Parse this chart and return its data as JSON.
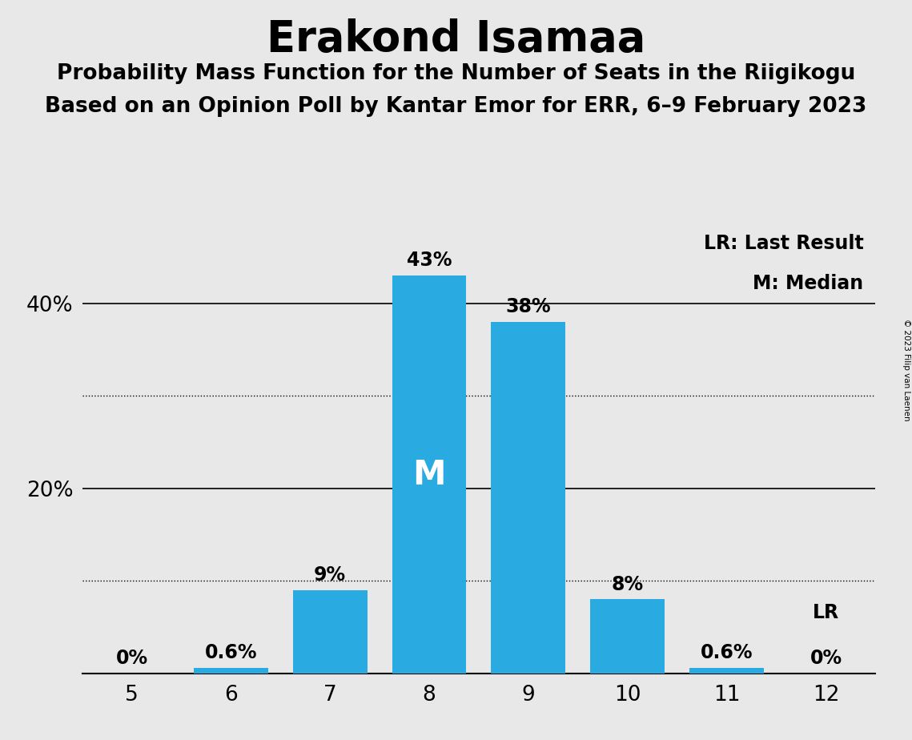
{
  "title": "Erakond Isamaa",
  "subtitle1": "Probability Mass Function for the Number of Seats in the Riigikogu",
  "subtitle2": "Based on an Opinion Poll by Kantar Emor for ERR, 6–9 February 2023",
  "copyright": "© 2023 Filip van Laenen",
  "seats": [
    5,
    6,
    7,
    8,
    9,
    10,
    11,
    12
  ],
  "probabilities": [
    0.0,
    0.6,
    9.0,
    43.0,
    38.0,
    8.0,
    0.6,
    0.0
  ],
  "bar_color": "#29ABE2",
  "background_color": "#E8E8E8",
  "ylabel_ticks": [
    20,
    40
  ],
  "ylabel_dotted_ticks": [
    10,
    30
  ],
  "ylim": [
    0,
    48
  ],
  "median_seat": 8,
  "lr_seat": 12,
  "legend_lr": "LR: Last Result",
  "legend_m": "M: Median",
  "median_label": "M",
  "lr_label": "LR",
  "bar_label_fontsize": 17,
  "median_label_fontsize": 30,
  "axis_label_fontsize": 19,
  "title_fontsize": 38,
  "subtitle_fontsize": 19,
  "legend_fontsize": 17
}
